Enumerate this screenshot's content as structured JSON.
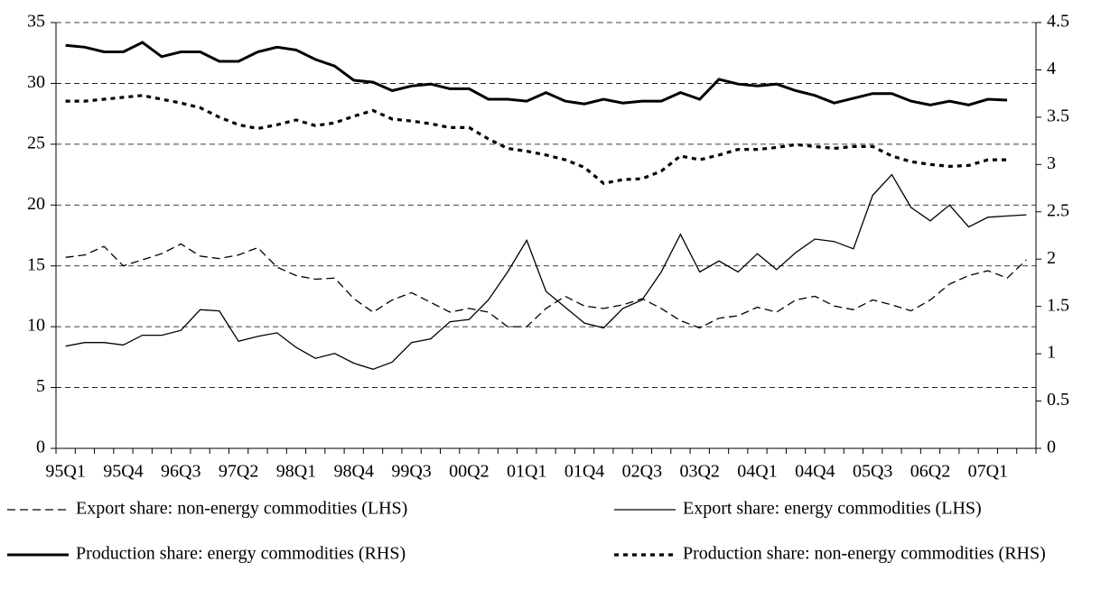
{
  "chart_data": {
    "type": "line",
    "categories": [
      "95Q1",
      null,
      null,
      "95Q4",
      null,
      null,
      "96Q3",
      null,
      null,
      "97Q2",
      null,
      null,
      "98Q1",
      null,
      null,
      "98Q4",
      null,
      null,
      "99Q3",
      null,
      null,
      "00Q2",
      null,
      null,
      "01Q1",
      null,
      null,
      "01Q4",
      null,
      null,
      "02Q3",
      null,
      null,
      "03Q2",
      null,
      null,
      "04Q1",
      null,
      null,
      "04Q4",
      null,
      null,
      "05Q3",
      null,
      null,
      "06Q2",
      null,
      null,
      "07Q1",
      null,
      null
    ],
    "series": [
      {
        "name": "Export share: non-energy commodities (LHS)",
        "color": "#000000",
        "style": "dashed",
        "axis": "y",
        "values": [
          15.7,
          15.9,
          16.6,
          15.0,
          15.5,
          16.0,
          16.8,
          15.8,
          15.6,
          15.9,
          16.5,
          14.9,
          14.2,
          13.9,
          14.0,
          12.3,
          11.2,
          12.2,
          12.8,
          12.0,
          11.2,
          11.5,
          11.2,
          10.0,
          10.0,
          11.5,
          12.5,
          11.7,
          11.5,
          11.8,
          12.3,
          11.5,
          10.5,
          9.9,
          10.7,
          10.9,
          11.6,
          11.2,
          12.2,
          12.5,
          11.7,
          11.4,
          12.2,
          11.8,
          11.3,
          12.2,
          13.5,
          14.2,
          14.6,
          14.0,
          15.5
        ]
      },
      {
        "name": "Export share: energy commodities (LHS)",
        "color": "#000000",
        "style": "solid",
        "axis": "y",
        "values": [
          8.4,
          8.7,
          8.7,
          8.5,
          9.3,
          9.3,
          9.7,
          11.4,
          11.3,
          8.8,
          9.2,
          9.5,
          8.3,
          7.4,
          7.8,
          7.0,
          6.5,
          7.1,
          8.7,
          9.0,
          10.4,
          10.6,
          12.2,
          14.5,
          17.1,
          12.9,
          11.6,
          10.3,
          9.9,
          11.5,
          12.2,
          14.5,
          17.6,
          14.5,
          15.4,
          14.5,
          16.0,
          14.7,
          16.1,
          17.2,
          17.0,
          16.4,
          20.8,
          22.5,
          19.8,
          18.7,
          20.0,
          18.2,
          19.0,
          19.1,
          19.2
        ]
      },
      {
        "name": "Production share: energy commodities (RHS)",
        "color": "#000000",
        "style": "thick",
        "axis": "y2",
        "values": [
          4.26,
          4.24,
          4.19,
          4.19,
          4.29,
          4.14,
          4.19,
          4.19,
          4.09,
          4.09,
          4.19,
          4.24,
          4.21,
          4.11,
          4.04,
          3.89,
          3.87,
          3.78,
          3.83,
          3.85,
          3.8,
          3.8,
          3.69,
          3.69,
          3.67,
          3.76,
          3.67,
          3.64,
          3.69,
          3.65,
          3.67,
          3.67,
          3.76,
          3.69,
          3.9,
          3.85,
          3.83,
          3.85,
          3.78,
          3.73,
          3.65,
          3.7,
          3.75,
          3.75,
          3.67,
          3.63,
          3.67,
          3.63,
          3.69,
          3.68,
          null
        ]
      },
      {
        "name": "Production share: non-energy commodities (RHS)",
        "color": "#000000",
        "style": "dotted",
        "axis": "y2",
        "values": [
          3.67,
          3.67,
          3.69,
          3.71,
          3.73,
          3.69,
          3.65,
          3.6,
          3.5,
          3.42,
          3.38,
          3.42,
          3.47,
          3.41,
          3.44,
          3.51,
          3.57,
          3.48,
          3.46,
          3.43,
          3.39,
          3.39,
          3.27,
          3.17,
          3.14,
          3.1,
          3.05,
          2.97,
          2.8,
          2.84,
          2.85,
          2.93,
          3.09,
          3.05,
          3.1,
          3.16,
          3.16,
          3.18,
          3.21,
          3.19,
          3.17,
          3.19,
          3.19,
          3.09,
          3.03,
          3.0,
          2.98,
          2.99,
          3.05,
          3.05,
          null
        ]
      }
    ],
    "ylim": [
      0,
      35
    ],
    "yticks": [
      0,
      5,
      10,
      15,
      20,
      25,
      30,
      35
    ],
    "y2lim": [
      0,
      4.5
    ],
    "y2ticks": [
      0,
      0.5,
      1,
      1.5,
      2,
      2.5,
      3,
      3.5,
      4,
      4.5
    ],
    "grid": true,
    "legend": "bottom"
  }
}
